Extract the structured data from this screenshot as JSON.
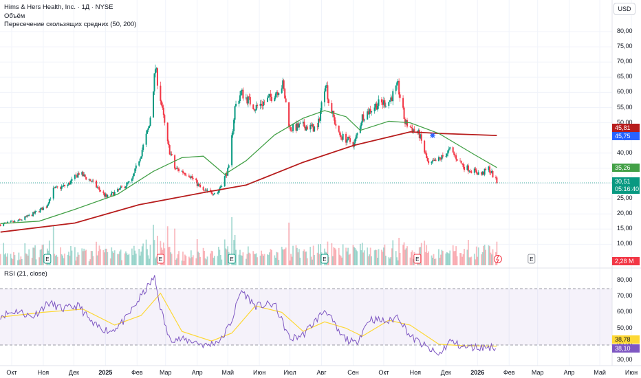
{
  "header": {
    "title": "Hims & Hers Health, Inc. · 1Д · NYSE",
    "volume_label": "Объём",
    "ma_label": "Пересечение скользящих средних (50, 200)",
    "currency": "USD"
  },
  "rsi": {
    "label": "RSI (21, close)"
  },
  "badges": {
    "ma200": "45,81",
    "blue": "45,75",
    "ma50": "35,26",
    "price": "30,51",
    "countdown": "05:16:40",
    "volume": "2,28 M",
    "rsi_ma": "38,78",
    "rsi": "38,10"
  },
  "colors": {
    "up": "#089981",
    "down": "#f23645",
    "ma50": "#43a047",
    "ma200": "#b71c1c",
    "rsi": "#7e57c2",
    "rsi_ma": "#fdd835",
    "blue": "#2962ff"
  },
  "chart_data": [
    {
      "type": "candlestick",
      "title": "Hims & Hers Health, Inc. · 1Д · NYSE",
      "x_ticks": [
        "Окт",
        "Ноя",
        "Дек",
        "2025",
        "Фев",
        "Мар",
        "Апр",
        "Май",
        "Июн",
        "Июл",
        "Авг",
        "Сен",
        "Окт",
        "Ноя",
        "Дек",
        "2026",
        "Фев",
        "Мар",
        "Апр",
        "Май",
        "Июн"
      ],
      "y_ticks": [
        "80,00",
        "75,00",
        "70,00",
        "65,00",
        "60,00",
        "55,00",
        "50,00",
        "45,00",
        "40,00",
        "35,00",
        "30,00",
        "25,00",
        "20,00",
        "15,00",
        "10,00"
      ],
      "ylim": [
        6,
        84
      ],
      "close_path": [
        [
          "2024-09-20",
          16.5
        ],
        [
          "2024-10-07",
          17.6
        ],
        [
          "2024-10-21",
          19.8
        ],
        [
          "2024-11-04",
          22.5
        ],
        [
          "2024-11-11",
          28.0
        ],
        [
          "2024-11-25",
          29.5
        ],
        [
          "2024-12-06",
          33.5
        ],
        [
          "2024-12-18",
          30.8
        ],
        [
          "2025-01-02",
          25.5
        ],
        [
          "2025-01-13",
          27.5
        ],
        [
          "2025-01-27",
          31.0
        ],
        [
          "2025-02-05",
          40.0
        ],
        [
          "2025-02-13",
          49.0
        ],
        [
          "2025-02-19",
          68.0
        ],
        [
          "2025-02-24",
          58.0
        ],
        [
          "2025-03-03",
          43.0
        ],
        [
          "2025-03-10",
          35.0
        ],
        [
          "2025-03-24",
          33.0
        ],
        [
          "2025-04-07",
          27.5
        ],
        [
          "2025-04-21",
          27.0
        ],
        [
          "2025-05-02",
          35.0
        ],
        [
          "2025-05-08",
          55.0
        ],
        [
          "2025-05-14",
          60.0
        ],
        [
          "2025-05-28",
          55.0
        ],
        [
          "2025-06-11",
          58.0
        ],
        [
          "2025-06-24",
          62.5
        ],
        [
          "2025-07-01",
          48.0
        ],
        [
          "2025-07-14",
          49.0
        ],
        [
          "2025-07-28",
          48.0
        ],
        [
          "2025-08-05",
          64.0
        ],
        [
          "2025-08-08",
          57.0
        ],
        [
          "2025-08-18",
          46.0
        ],
        [
          "2025-09-02",
          43.0
        ],
        [
          "2025-09-10",
          52.0
        ],
        [
          "2025-09-24",
          56.0
        ],
        [
          "2025-10-06",
          57.0
        ],
        [
          "2025-10-15",
          62.0
        ],
        [
          "2025-10-22",
          50.0
        ],
        [
          "2025-11-05",
          46.0
        ],
        [
          "2025-11-14",
          36.0
        ],
        [
          "2025-11-25",
          38.0
        ],
        [
          "2025-12-05",
          41.0
        ],
        [
          "2025-12-19",
          35.5
        ],
        [
          "2026-01-05",
          33.0
        ],
        [
          "2026-01-12",
          35.0
        ],
        [
          "2026-01-20",
          30.5
        ]
      ],
      "ma50": [
        [
          "2024-09-20",
          16.8
        ],
        [
          "2024-10-28",
          17.6
        ],
        [
          "2024-12-02",
          21.5
        ],
        [
          "2025-01-13",
          26.5
        ],
        [
          "2025-02-17",
          34.0
        ],
        [
          "2025-03-17",
          38.5
        ],
        [
          "2025-04-07",
          39.0
        ],
        [
          "2025-04-28",
          33.0
        ],
        [
          "2025-05-19",
          37.5
        ],
        [
          "2025-06-16",
          46.0
        ],
        [
          "2025-07-14",
          51.5
        ],
        [
          "2025-08-04",
          54.0
        ],
        [
          "2025-08-25",
          52.0
        ],
        [
          "2025-09-08",
          47.5
        ],
        [
          "2025-10-06",
          50.5
        ],
        [
          "2025-10-27",
          50.0
        ],
        [
          "2025-11-24",
          46.5
        ],
        [
          "2025-12-29",
          39.5
        ],
        [
          "2026-01-20",
          35.26
        ]
      ],
      "ma200": [
        [
          "2024-09-20",
          14.0
        ],
        [
          "2024-12-02",
          17.0
        ],
        [
          "2025-02-03",
          23.0
        ],
        [
          "2025-04-07",
          27.0
        ],
        [
          "2025-05-19",
          29.5
        ],
        [
          "2025-07-14",
          37.0
        ],
        [
          "2025-09-01",
          42.5
        ],
        [
          "2025-10-27",
          47.0
        ],
        [
          "2025-11-24",
          46.5
        ],
        [
          "2026-01-20",
          45.81
        ]
      ],
      "last_price": 30.51,
      "volume_last": "2,28 M"
    },
    {
      "type": "line",
      "title": "RSI (21, close)",
      "y_ticks": [
        "80,00",
        "70,00",
        "60,00",
        "50,00",
        "40,00",
        "30,00"
      ],
      "ylim": [
        30,
        82
      ],
      "band": [
        40,
        75
      ],
      "rsi": [
        [
          "2024-09-20",
          58
        ],
        [
          "2024-10-07",
          61
        ],
        [
          "2024-10-21",
          57
        ],
        [
          "2024-11-06",
          66
        ],
        [
          "2024-11-20",
          62
        ],
        [
          "2024-12-06",
          64
        ],
        [
          "2024-12-20",
          52
        ],
        [
          "2025-01-06",
          48
        ],
        [
          "2025-01-20",
          55
        ],
        [
          "2025-02-05",
          70
        ],
        [
          "2025-02-18",
          82
        ],
        [
          "2025-02-24",
          63
        ],
        [
          "2025-03-04",
          44
        ],
        [
          "2025-03-14",
          43
        ],
        [
          "2025-03-28",
          42
        ],
        [
          "2025-04-10",
          39
        ],
        [
          "2025-04-25",
          43
        ],
        [
          "2025-05-05",
          55
        ],
        [
          "2025-05-14",
          74
        ],
        [
          "2025-05-28",
          64
        ],
        [
          "2025-06-16",
          65
        ],
        [
          "2025-07-01",
          43
        ],
        [
          "2025-07-14",
          46
        ],
        [
          "2025-08-05",
          62
        ],
        [
          "2025-08-19",
          46
        ],
        [
          "2025-09-03",
          40
        ],
        [
          "2025-09-17",
          56
        ],
        [
          "2025-10-06",
          54
        ],
        [
          "2025-10-15",
          58
        ],
        [
          "2025-10-27",
          45
        ],
        [
          "2025-11-12",
          38
        ],
        [
          "2025-11-24",
          33
        ],
        [
          "2025-12-05",
          42
        ],
        [
          "2025-12-19",
          38
        ],
        [
          "2026-01-05",
          38
        ],
        [
          "2026-01-20",
          38.1
        ]
      ],
      "rsi_ma": [
        [
          "2024-09-20",
          57
        ],
        [
          "2024-11-01",
          60
        ],
        [
          "2024-12-10",
          62
        ],
        [
          "2025-01-10",
          52
        ],
        [
          "2025-02-05",
          58
        ],
        [
          "2025-02-24",
          72
        ],
        [
          "2025-03-17",
          48
        ],
        [
          "2025-04-15",
          42
        ],
        [
          "2025-05-05",
          47
        ],
        [
          "2025-05-28",
          64
        ],
        [
          "2025-06-23",
          60
        ],
        [
          "2025-07-14",
          48
        ],
        [
          "2025-08-04",
          54
        ],
        [
          "2025-08-25",
          50
        ],
        [
          "2025-09-10",
          45
        ],
        [
          "2025-10-06",
          55
        ],
        [
          "2025-10-27",
          52
        ],
        [
          "2025-11-24",
          40
        ],
        [
          "2025-12-19",
          39
        ],
        [
          "2026-01-20",
          38.78
        ]
      ],
      "last_rsi": 38.1,
      "last_rsi_ma": 38.78
    }
  ]
}
